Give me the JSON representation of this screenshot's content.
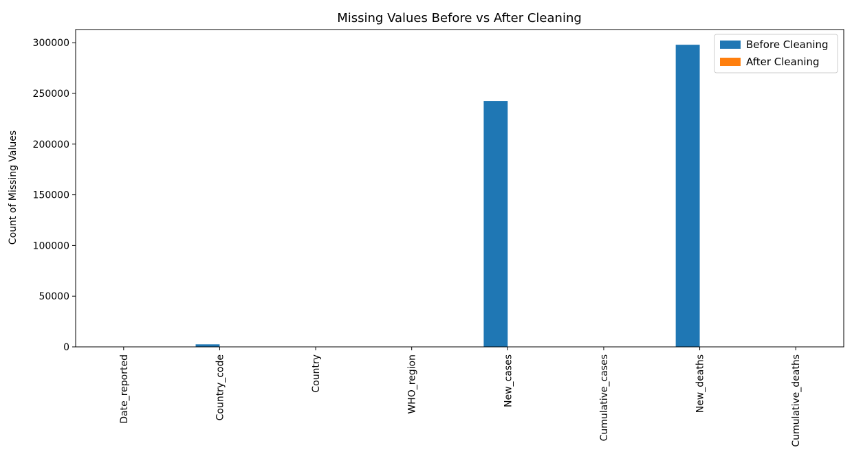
{
  "chart_data": {
    "type": "bar",
    "title": "Missing Values Before vs After Cleaning",
    "xlabel": "",
    "ylabel": "Count of Missing Values",
    "categories": [
      "Date_reported",
      "Country_code",
      "Country",
      "WHO_region",
      "New_cases",
      "Cumulative_cases",
      "New_deaths",
      "Cumulative_deaths"
    ],
    "series": [
      {
        "name": "Before Cleaning",
        "color": "#1f77b4",
        "values": [
          0,
          2500,
          0,
          0,
          242500,
          0,
          298000,
          0
        ]
      },
      {
        "name": "After Cleaning",
        "color": "#ff7f0e",
        "values": [
          0,
          0,
          0,
          0,
          0,
          0,
          0,
          0
        ]
      }
    ],
    "ylim": [
      0,
      313000
    ],
    "yticks": [
      0,
      50000,
      100000,
      150000,
      200000,
      250000,
      300000
    ],
    "grid": false,
    "legend_position": "top-right"
  }
}
